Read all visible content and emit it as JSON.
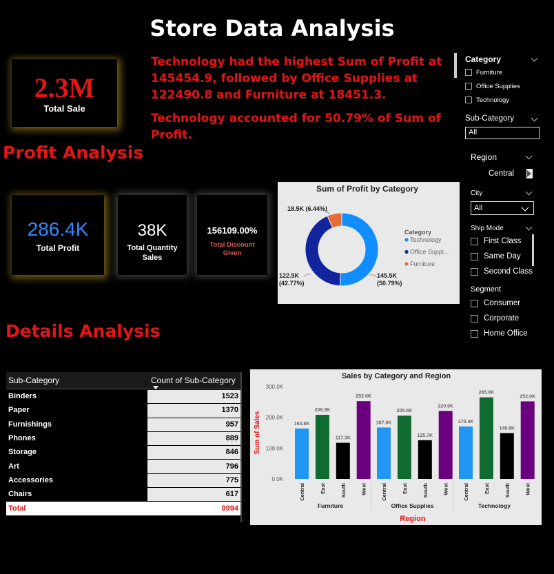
{
  "header": {
    "title": "Store Data Analysis"
  },
  "kpi_total_sale": {
    "value": "2.3M",
    "label": "Total Sale"
  },
  "insight": {
    "line1": "Technology had the highest Sum of Profit at 145454.9, followed by Office Supplies at 122490.8 and Furniture at 18451.3.",
    "line2": "Technology accounted for 50.79% of Sum of Profit."
  },
  "sections": {
    "profit": "Profit Analysis",
    "details": "Details Analysis"
  },
  "kpi_profit": {
    "value": "286.4K",
    "label": "Total Profit"
  },
  "kpi_quantity": {
    "value": "38K",
    "label": "Total Quantity Sales"
  },
  "kpi_discount": {
    "value": "156109.00%",
    "label": "Total Discount Given"
  },
  "slicers": {
    "category": {
      "title": "Category",
      "items": [
        "Furniture",
        "Office Supplies",
        "Technology"
      ]
    },
    "subcategory": {
      "title": "Sub-Category",
      "value": "All"
    },
    "region": {
      "title": "Region",
      "value": "Central"
    },
    "city": {
      "title": "City",
      "value": "All"
    },
    "shipmode": {
      "title": "Ship Mode",
      "items": [
        "First Class",
        "Same Day",
        "Second Class"
      ]
    },
    "segment": {
      "title": "Segment",
      "items": [
        "Consumer",
        "Corporate",
        "Home Office"
      ]
    }
  },
  "table": {
    "col1": "Sub-Category",
    "col2": "Count of Sub-Category",
    "rows": [
      {
        "name": "Binders",
        "count": "1523"
      },
      {
        "name": "Paper",
        "count": "1370"
      },
      {
        "name": "Furnishings",
        "count": "957"
      },
      {
        "name": "Phones",
        "count": "889"
      },
      {
        "name": "Storage",
        "count": "846"
      },
      {
        "name": "Art",
        "count": "796"
      },
      {
        "name": "Accessories",
        "count": "775"
      },
      {
        "name": "Chairs",
        "count": "617"
      }
    ],
    "total_label": "Total",
    "total_value": "9994"
  },
  "chart_data": [
    {
      "type": "pie",
      "title": "Sum of Profit by Category",
      "legend_title": "Category",
      "legend_position": "right",
      "categories": [
        "Technology",
        "Office Supplies",
        "Furniture"
      ],
      "legend_labels": [
        "Technology",
        "Office Suppl...",
        "Furniture"
      ],
      "values": [
        145.5,
        122.5,
        18.5
      ],
      "data_labels": [
        "145.5K (50.79%)",
        "122.5K (42.77%)",
        "18.5K (6.44%)"
      ],
      "colors": [
        "#118dff",
        "#12239e",
        "#e66c37"
      ]
    },
    {
      "type": "bar",
      "title": "Sales by Category and Region",
      "xlabel": "Region",
      "ylabel": "Sum of Sales",
      "ylim": [
        0,
        300
      ],
      "yticks": [
        "0.0K",
        "100.0K",
        "200.0K",
        "300.0K"
      ],
      "groups": [
        "Furniture",
        "Office Supplies",
        "Technology"
      ],
      "regions": [
        "Central",
        "East",
        "South",
        "West"
      ],
      "region_colors": [
        "#2196f3",
        "#0f6b2f",
        "#000000",
        "#6a0080"
      ],
      "values": [
        [
          163.8,
          208.3,
          117.3,
          252.6
        ],
        [
          167.0,
          205.5,
          125.7,
          220.9
        ],
        [
          170.4,
          265.0,
          148.8,
          252.0
        ]
      ],
      "data_labels": [
        [
          "163.8K",
          "208.3K",
          "117.3K",
          "252.6K"
        ],
        [
          "167.0K",
          "205.5K",
          "125.7K",
          "220.9K"
        ],
        [
          "170.4K",
          "265.0K",
          "148.8K",
          "252.0K"
        ]
      ]
    }
  ]
}
